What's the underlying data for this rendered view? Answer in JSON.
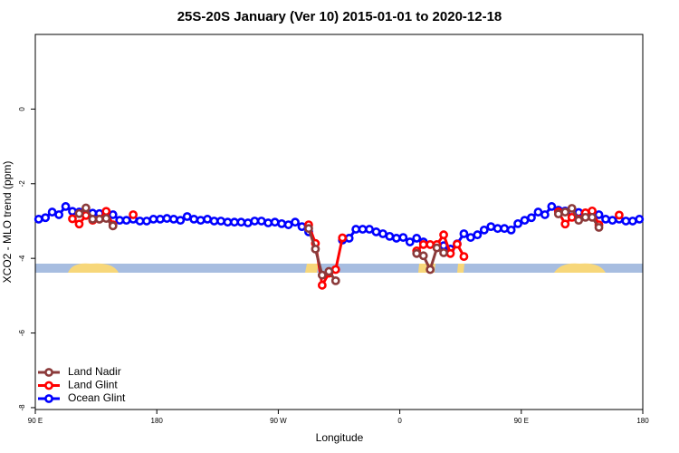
{
  "chart_data": {
    "type": "line",
    "title": "25S-20S January (Ver 10)   2015-01-01 to 2020-12-18",
    "x_label": "Longitude",
    "y_label": "XCO2 - MLO trend (ppm)",
    "xlim": [
      90,
      540
    ],
    "ylim": [
      -8.05,
      2.0
    ],
    "xticks": [
      {
        "value": 90,
        "label": "90 E"
      },
      {
        "value": 180,
        "label": "180"
      },
      {
        "value": 270,
        "label": "90 W"
      },
      {
        "value": 360,
        "label": "0"
      },
      {
        "value": 450,
        "label": "90 E"
      },
      {
        "value": 540,
        "label": "180"
      }
    ],
    "yticks": [
      0,
      -2,
      -4,
      -6,
      -8
    ],
    "legend": "bottom-left",
    "x": [
      92.5,
      97.5,
      102.5,
      107.5,
      112.5,
      117.5,
      122.5,
      127.5,
      132.5,
      137.5,
      142.5,
      147.5,
      152.5,
      157.5,
      162.5,
      167.5,
      172.5,
      177.5,
      182.5,
      187.5,
      192.5,
      197.5,
      202.5,
      207.5,
      212.5,
      217.5,
      222.5,
      227.5,
      232.5,
      237.5,
      242.5,
      247.5,
      252.5,
      257.5,
      262.5,
      267.5,
      272.5,
      277.5,
      282.5,
      287.5,
      292.5,
      297.5,
      302.5,
      307.5,
      312.5,
      317.5,
      322.5,
      327.5,
      332.5,
      337.5,
      342.5,
      347.5,
      352.5,
      357.5,
      362.5,
      367.5,
      372.5,
      377.5,
      382.5,
      387.5,
      392.5,
      397.5,
      402.5,
      407.5,
      412.5,
      417.5,
      422.5,
      427.5,
      432.5,
      437.5,
      442.5,
      447.5,
      452.5,
      457.5,
      462.5,
      467.5,
      472.5,
      477.5,
      482.5,
      487.5,
      492.5,
      497.5,
      502.5,
      507.5,
      512.5,
      517.5,
      522.5,
      527.5,
      532.5,
      537.5
    ],
    "series": [
      {
        "name": "Land Nadir",
        "color": "#8b3a3a",
        "values": [
          null,
          null,
          null,
          null,
          null,
          null,
          -2.8,
          -2.65,
          -2.95,
          -2.95,
          -2.93,
          -3.13,
          null,
          null,
          null,
          null,
          null,
          null,
          null,
          null,
          null,
          null,
          null,
          null,
          null,
          null,
          null,
          null,
          null,
          null,
          null,
          null,
          null,
          null,
          null,
          null,
          null,
          null,
          null,
          null,
          -3.2,
          -3.75,
          -4.45,
          -4.35,
          -4.6,
          null,
          null,
          null,
          null,
          null,
          null,
          null,
          null,
          null,
          null,
          null,
          -3.87,
          -3.93,
          -4.3,
          -3.72,
          -3.85,
          null,
          null,
          null,
          null,
          null,
          null,
          null,
          null,
          null,
          null,
          null,
          null,
          null,
          null,
          null,
          null,
          -2.81,
          -2.76,
          -2.66,
          -2.98,
          -2.9,
          -2.9,
          -3.17,
          null,
          null,
          null,
          null,
          null,
          null
        ]
      },
      {
        "name": "Land Glint",
        "color": "#ff0000",
        "values": [
          null,
          null,
          null,
          null,
          null,
          -2.94,
          -3.08,
          -2.85,
          -2.98,
          -2.95,
          -2.74,
          -3.1,
          null,
          null,
          -2.83,
          null,
          null,
          null,
          null,
          null,
          null,
          null,
          null,
          null,
          null,
          null,
          null,
          null,
          null,
          null,
          null,
          null,
          null,
          null,
          null,
          null,
          null,
          null,
          null,
          null,
          -3.1,
          -3.6,
          -4.72,
          -4.4,
          -4.3,
          -3.45,
          null,
          null,
          null,
          null,
          null,
          null,
          null,
          null,
          null,
          null,
          -3.8,
          -3.63,
          -3.63,
          -3.63,
          -3.37,
          -3.87,
          -3.62,
          -3.95,
          null,
          null,
          null,
          null,
          null,
          null,
          null,
          null,
          null,
          null,
          null,
          null,
          null,
          -2.75,
          -3.08,
          -2.9,
          -2.95,
          -2.78,
          -2.73,
          -3.1,
          null,
          null,
          -2.84,
          null,
          null,
          null
        ]
      },
      {
        "name": "Ocean Glint",
        "color": "#0000ff",
        "values": [
          -2.95,
          -2.91,
          -2.76,
          -2.83,
          -2.61,
          -2.74,
          -2.76,
          -2.78,
          -2.79,
          -2.8,
          -2.82,
          -2.83,
          -2.98,
          -2.98,
          -2.95,
          -3.0,
          -3.0,
          -2.95,
          -2.95,
          -2.93,
          -2.95,
          -2.98,
          -2.88,
          -2.95,
          -2.98,
          -2.95,
          -3.0,
          -3.0,
          -3.03,
          -3.03,
          -3.03,
          -3.05,
          -3.0,
          -3.0,
          -3.05,
          -3.03,
          -3.07,
          -3.1,
          -3.03,
          -3.15,
          -3.29,
          null,
          null,
          null,
          null,
          -3.51,
          -3.46,
          -3.22,
          -3.22,
          -3.22,
          -3.29,
          -3.34,
          -3.41,
          -3.46,
          -3.44,
          -3.56,
          -3.46,
          -3.56,
          null,
          null,
          -3.66,
          -3.75,
          -3.61,
          -3.34,
          -3.44,
          -3.37,
          -3.24,
          -3.15,
          -3.2,
          -3.2,
          -3.24,
          -3.07,
          -2.98,
          -2.91,
          -2.76,
          -2.83,
          -2.61,
          -2.71,
          -2.73,
          -2.75,
          -2.77,
          -2.79,
          -2.81,
          -2.83,
          -2.95,
          -2.98,
          -2.95,
          -3.0,
          -3.0,
          -2.95
        ]
      }
    ]
  }
}
